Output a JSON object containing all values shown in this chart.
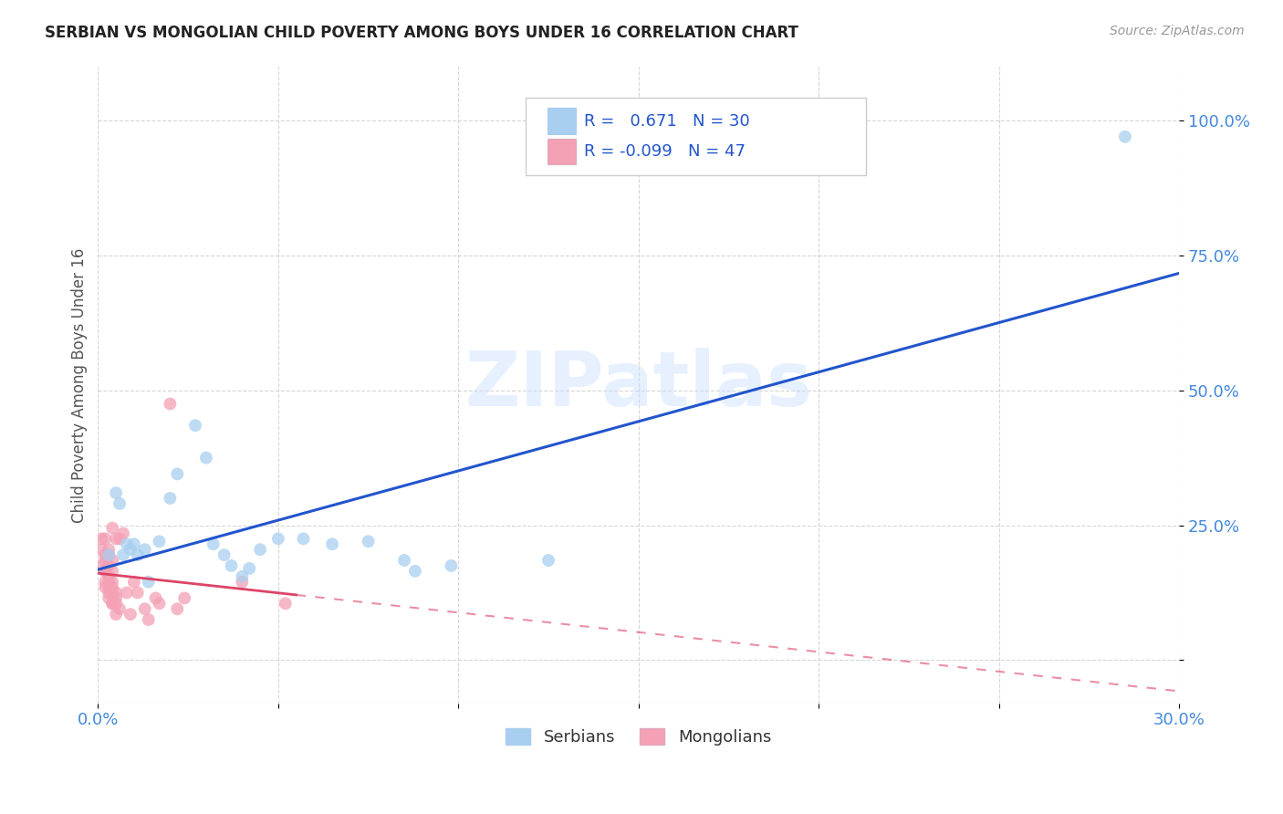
{
  "title": "SERBIAN VS MONGOLIAN CHILD POVERTY AMONG BOYS UNDER 16 CORRELATION CHART",
  "source": "Source: ZipAtlas.com",
  "ylabel": "Child Poverty Among Boys Under 16",
  "xlabel_ticks": [
    "0.0%",
    "",
    "",
    "",
    "",
    "",
    "30.0%"
  ],
  "ylabel_ticks": [
    "",
    "25.0%",
    "50.0%",
    "75.0%",
    "100.0%"
  ],
  "xlim": [
    0.0,
    0.3
  ],
  "ylim": [
    -0.08,
    1.1
  ],
  "watermark": "ZIPatlas",
  "serbian_R": 0.671,
  "serbian_N": 30,
  "mongolian_R": -0.099,
  "mongolian_N": 47,
  "serbian_color": "#A8CFF0",
  "mongolian_color": "#F4A0B5",
  "serbian_line_color": "#2255CC",
  "mongolian_line_color": "#DD4466",
  "grid_color": "#CCCCCC",
  "serbian_points": [
    [
      0.003,
      0.195
    ],
    [
      0.005,
      0.31
    ],
    [
      0.006,
      0.29
    ],
    [
      0.007,
      0.195
    ],
    [
      0.008,
      0.215
    ],
    [
      0.009,
      0.205
    ],
    [
      0.01,
      0.215
    ],
    [
      0.011,
      0.195
    ],
    [
      0.013,
      0.205
    ],
    [
      0.014,
      0.145
    ],
    [
      0.017,
      0.22
    ],
    [
      0.02,
      0.3
    ],
    [
      0.022,
      0.345
    ],
    [
      0.027,
      0.435
    ],
    [
      0.03,
      0.375
    ],
    [
      0.032,
      0.215
    ],
    [
      0.035,
      0.195
    ],
    [
      0.037,
      0.175
    ],
    [
      0.04,
      0.155
    ],
    [
      0.042,
      0.17
    ],
    [
      0.045,
      0.205
    ],
    [
      0.05,
      0.225
    ],
    [
      0.057,
      0.225
    ],
    [
      0.065,
      0.215
    ],
    [
      0.075,
      0.22
    ],
    [
      0.085,
      0.185
    ],
    [
      0.088,
      0.165
    ],
    [
      0.098,
      0.175
    ],
    [
      0.125,
      0.185
    ],
    [
      0.285,
      0.97
    ]
  ],
  "mongolian_points": [
    [
      0.001,
      0.205
    ],
    [
      0.001,
      0.175
    ],
    [
      0.001,
      0.225
    ],
    [
      0.002,
      0.165
    ],
    [
      0.002,
      0.195
    ],
    [
      0.002,
      0.145
    ],
    [
      0.002,
      0.185
    ],
    [
      0.002,
      0.135
    ],
    [
      0.002,
      0.165
    ],
    [
      0.002,
      0.225
    ],
    [
      0.003,
      0.125
    ],
    [
      0.003,
      0.155
    ],
    [
      0.003,
      0.205
    ],
    [
      0.003,
      0.135
    ],
    [
      0.003,
      0.175
    ],
    [
      0.003,
      0.115
    ],
    [
      0.003,
      0.145
    ],
    [
      0.003,
      0.195
    ],
    [
      0.004,
      0.125
    ],
    [
      0.004,
      0.165
    ],
    [
      0.004,
      0.105
    ],
    [
      0.004,
      0.145
    ],
    [
      0.004,
      0.185
    ],
    [
      0.004,
      0.245
    ],
    [
      0.004,
      0.105
    ],
    [
      0.004,
      0.135
    ],
    [
      0.005,
      0.085
    ],
    [
      0.005,
      0.125
    ],
    [
      0.005,
      0.105
    ],
    [
      0.005,
      0.115
    ],
    [
      0.005,
      0.225
    ],
    [
      0.006,
      0.095
    ],
    [
      0.006,
      0.225
    ],
    [
      0.007,
      0.235
    ],
    [
      0.008,
      0.125
    ],
    [
      0.009,
      0.085
    ],
    [
      0.01,
      0.145
    ],
    [
      0.011,
      0.125
    ],
    [
      0.013,
      0.095
    ],
    [
      0.014,
      0.075
    ],
    [
      0.016,
      0.115
    ],
    [
      0.017,
      0.105
    ],
    [
      0.02,
      0.475
    ],
    [
      0.022,
      0.095
    ],
    [
      0.024,
      0.115
    ],
    [
      0.04,
      0.145
    ],
    [
      0.052,
      0.105
    ]
  ],
  "background_color": "#FFFFFF",
  "plot_bg_color": "#FFFFFF"
}
